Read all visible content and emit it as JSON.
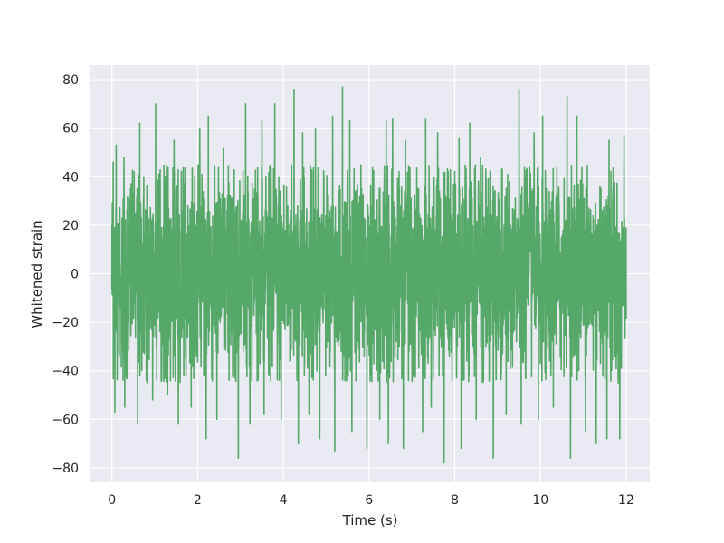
{
  "chart_data": {
    "type": "line",
    "title": "",
    "xlabel": "Time (s)",
    "ylabel": "Whitened strain",
    "xlim": [
      -0.5,
      12.55
    ],
    "ylim": [
      -86,
      86
    ],
    "xticks": [
      0,
      2,
      4,
      6,
      8,
      10,
      12
    ],
    "yticks": [
      -80,
      -60,
      -40,
      -20,
      0,
      20,
      40,
      60,
      80
    ],
    "xtick_labels": [
      "0",
      "2",
      "4",
      "6",
      "8",
      "10",
      "12"
    ],
    "ytick_labels": [
      "−80",
      "−60",
      "−40",
      "−20",
      "0",
      "20",
      "40",
      "60",
      "80"
    ],
    "grid": true,
    "legend": "none",
    "colors": {
      "plot_background": "#eaeaf2",
      "grid": "#ffffff",
      "series": "#55a868"
    },
    "series": [
      {
        "x_range": [
          0,
          12
        ],
        "typical_band": [
          -45,
          45
        ],
        "peaks": [
          {
            "x": 0.03,
            "y": 46
          },
          {
            "x": 0.1,
            "y": 53
          },
          {
            "x": 0.28,
            "y": 48
          },
          {
            "x": 0.65,
            "y": 62
          },
          {
            "x": 1.02,
            "y": 70
          },
          {
            "x": 1.45,
            "y": 55
          },
          {
            "x": 1.85,
            "y": 58
          },
          {
            "x": 2.05,
            "y": 60
          },
          {
            "x": 2.25,
            "y": 65
          },
          {
            "x": 2.6,
            "y": 52
          },
          {
            "x": 2.95,
            "y": 68
          },
          {
            "x": 3.12,
            "y": 70
          },
          {
            "x": 3.5,
            "y": 63
          },
          {
            "x": 3.8,
            "y": 70
          },
          {
            "x": 4.25,
            "y": 76
          },
          {
            "x": 4.45,
            "y": 58
          },
          {
            "x": 4.75,
            "y": 60
          },
          {
            "x": 5.15,
            "y": 65
          },
          {
            "x": 5.38,
            "y": 77
          },
          {
            "x": 5.55,
            "y": 63
          },
          {
            "x": 5.95,
            "y": 75
          },
          {
            "x": 6.25,
            "y": 65
          },
          {
            "x": 6.4,
            "y": 63
          },
          {
            "x": 6.55,
            "y": 64
          },
          {
            "x": 6.85,
            "y": 55
          },
          {
            "x": 7.32,
            "y": 64
          },
          {
            "x": 7.6,
            "y": 58
          },
          {
            "x": 7.75,
            "y": 50
          },
          {
            "x": 8.1,
            "y": 56
          },
          {
            "x": 8.35,
            "y": 62
          },
          {
            "x": 8.6,
            "y": 48
          },
          {
            "x": 8.9,
            "y": 52
          },
          {
            "x": 9.2,
            "y": 48
          },
          {
            "x": 9.5,
            "y": 76
          },
          {
            "x": 9.85,
            "y": 58
          },
          {
            "x": 10.05,
            "y": 65
          },
          {
            "x": 10.3,
            "y": 58
          },
          {
            "x": 10.62,
            "y": 73
          },
          {
            "x": 10.85,
            "y": 65
          },
          {
            "x": 11.05,
            "y": 56
          },
          {
            "x": 11.3,
            "y": 66
          },
          {
            "x": 11.6,
            "y": 55
          },
          {
            "x": 11.85,
            "y": 55
          },
          {
            "x": 11.95,
            "y": 57
          }
        ],
        "troughs": [
          {
            "x": 0.07,
            "y": -57
          },
          {
            "x": 0.3,
            "y": -55
          },
          {
            "x": 0.6,
            "y": -62
          },
          {
            "x": 0.95,
            "y": -52
          },
          {
            "x": 1.3,
            "y": -50
          },
          {
            "x": 1.55,
            "y": -62
          },
          {
            "x": 1.85,
            "y": -55
          },
          {
            "x": 2.2,
            "y": -68
          },
          {
            "x": 2.45,
            "y": -60
          },
          {
            "x": 2.95,
            "y": -76
          },
          {
            "x": 3.22,
            "y": -62
          },
          {
            "x": 3.55,
            "y": -58
          },
          {
            "x": 3.95,
            "y": -60
          },
          {
            "x": 4.35,
            "y": -70
          },
          {
            "x": 4.6,
            "y": -58
          },
          {
            "x": 4.85,
            "y": -68
          },
          {
            "x": 5.2,
            "y": -73
          },
          {
            "x": 5.6,
            "y": -65
          },
          {
            "x": 5.95,
            "y": -72
          },
          {
            "x": 6.25,
            "y": -60
          },
          {
            "x": 6.45,
            "y": -70
          },
          {
            "x": 6.8,
            "y": -72
          },
          {
            "x": 7.25,
            "y": -65
          },
          {
            "x": 7.45,
            "y": -55
          },
          {
            "x": 7.75,
            "y": -78
          },
          {
            "x": 8.15,
            "y": -72
          },
          {
            "x": 8.5,
            "y": -60
          },
          {
            "x": 8.9,
            "y": -76
          },
          {
            "x": 9.2,
            "y": -58
          },
          {
            "x": 9.55,
            "y": -62
          },
          {
            "x": 9.95,
            "y": -60
          },
          {
            "x": 10.3,
            "y": -55
          },
          {
            "x": 10.7,
            "y": -76
          },
          {
            "x": 11.05,
            "y": -65
          },
          {
            "x": 11.3,
            "y": -70
          },
          {
            "x": 11.55,
            "y": -68
          },
          {
            "x": 11.85,
            "y": -68
          }
        ]
      }
    ]
  }
}
